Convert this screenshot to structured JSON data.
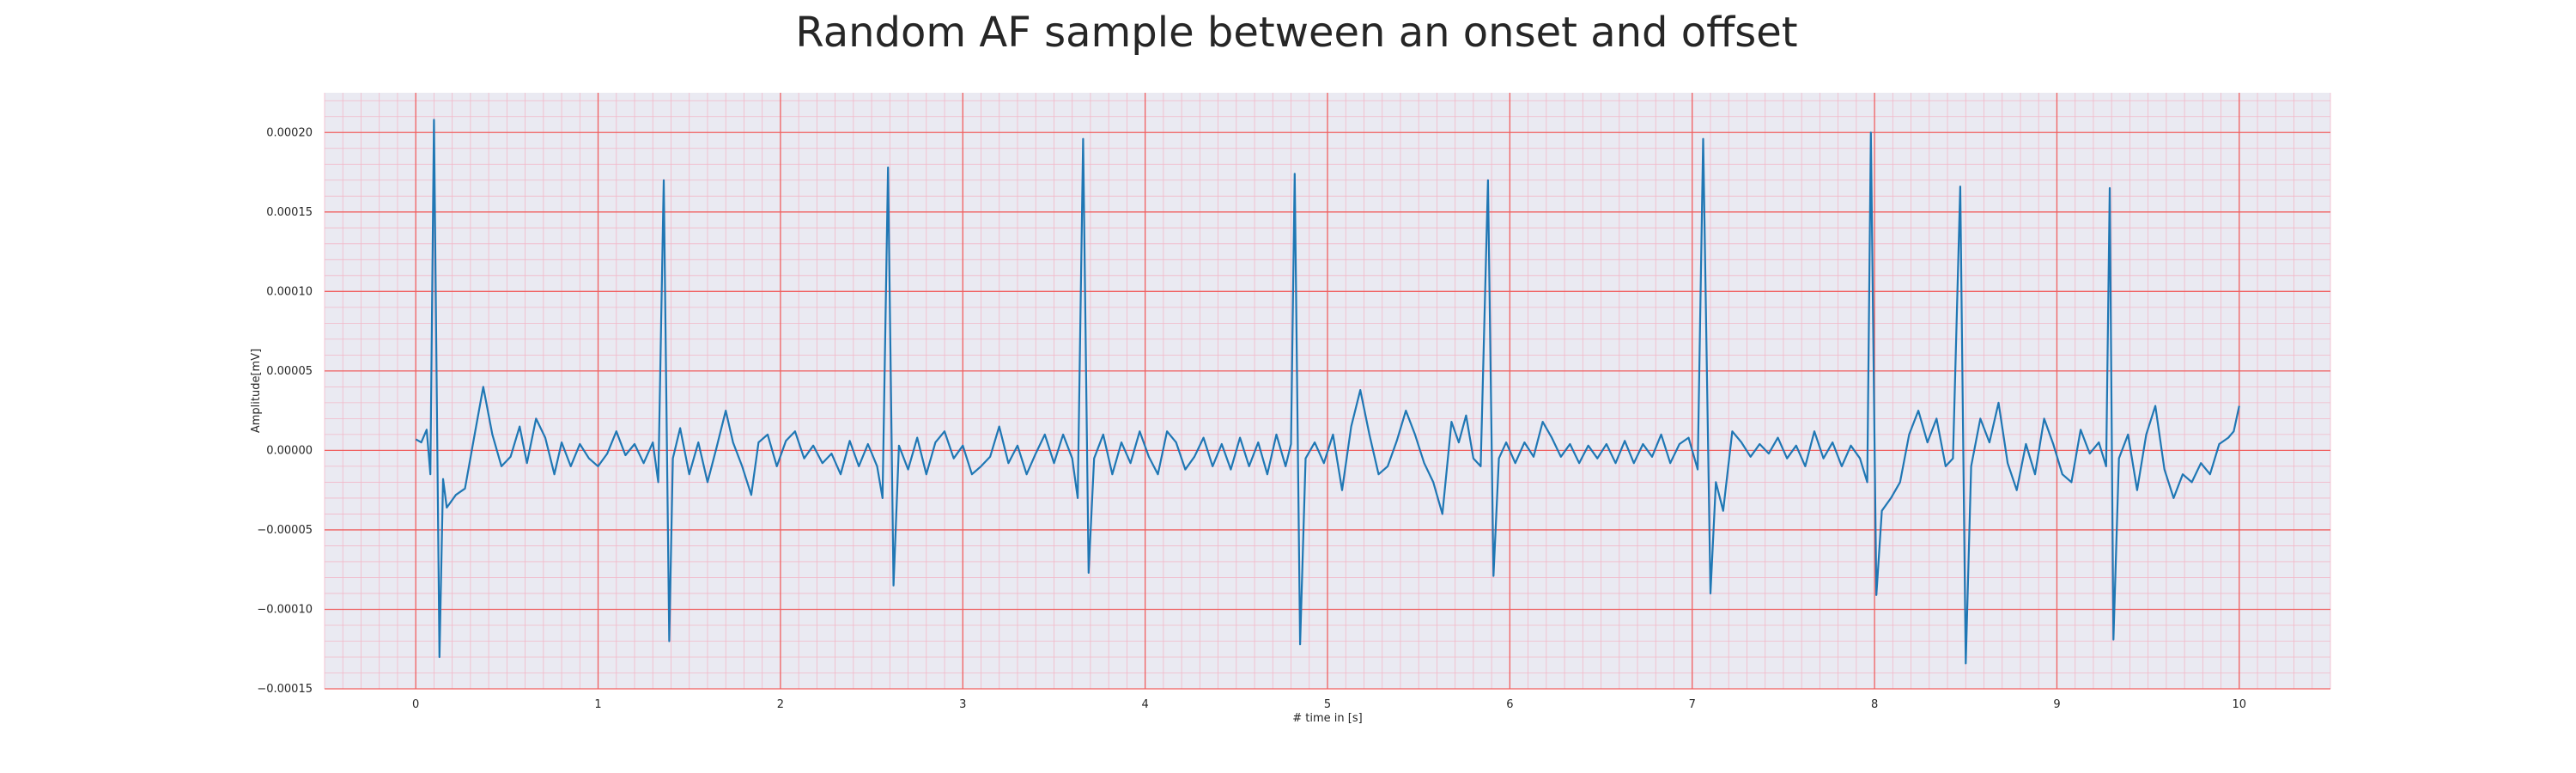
{
  "chart_data": {
    "type": "line",
    "title": "Random AF sample between an onset and offset",
    "xlabel": "# time in [s]",
    "ylabel": "Amplitude[mV]",
    "xlim": [
      -0.5,
      10.5
    ],
    "ylim": [
      -0.00015,
      0.000225
    ],
    "x_ticks": [
      0,
      1,
      2,
      3,
      4,
      5,
      6,
      7,
      8,
      9,
      10
    ],
    "x_tick_labels": [
      "0",
      "1",
      "2",
      "3",
      "4",
      "5",
      "6",
      "7",
      "8",
      "9",
      "10"
    ],
    "y_ticks": [
      -0.00015,
      -0.0001,
      -5e-05,
      0,
      5e-05,
      0.0001,
      0.00015,
      0.0002
    ],
    "y_tick_labels": [
      "−0.00015",
      "−0.00010",
      "−0.00005",
      "0.00000",
      "0.00005",
      "0.00010",
      "0.00015",
      "0.00020"
    ],
    "grid": true,
    "minor_grid": true,
    "colors": {
      "background": "#eaeaf2",
      "major_grid": "#f06060",
      "minor_grid": "#f2b8c8",
      "line": "#1f77b4"
    },
    "series": [
      {
        "values": [
          [
            0.0,
            7e-06
          ],
          [
            0.03,
            5e-06
          ],
          [
            0.06,
            1.3e-05
          ],
          [
            0.08,
            -1.5e-05
          ],
          [
            0.1,
            0.000208
          ],
          [
            0.13,
            -0.00013
          ],
          [
            0.15,
            -1.8e-05
          ],
          [
            0.17,
            -3.6e-05
          ],
          [
            0.22,
            -2.8e-05
          ],
          [
            0.27,
            -2.4e-05
          ],
          [
            0.32,
            8e-06
          ],
          [
            0.37,
            4e-05
          ],
          [
            0.42,
            1e-05
          ],
          [
            0.47,
            -1e-05
          ],
          [
            0.52,
            -4e-06
          ],
          [
            0.57,
            1.5e-05
          ],
          [
            0.61,
            -8e-06
          ],
          [
            0.66,
            2e-05
          ],
          [
            0.71,
            8e-06
          ],
          [
            0.76,
            -1.5e-05
          ],
          [
            0.8,
            5e-06
          ],
          [
            0.85,
            -1e-05
          ],
          [
            0.9,
            4e-06
          ],
          [
            0.95,
            -5e-06
          ],
          [
            1.0,
            -1e-05
          ],
          [
            1.05,
            -2e-06
          ],
          [
            1.1,
            1.2e-05
          ],
          [
            1.15,
            -3e-06
          ],
          [
            1.2,
            4e-06
          ],
          [
            1.25,
            -8e-06
          ],
          [
            1.3,
            5e-06
          ],
          [
            1.33,
            -2e-05
          ],
          [
            1.36,
            0.00017
          ],
          [
            1.39,
            -0.00012
          ],
          [
            1.41,
            -5e-06
          ],
          [
            1.45,
            1.4e-05
          ],
          [
            1.5,
            -1.5e-05
          ],
          [
            1.55,
            5e-06
          ],
          [
            1.6,
            -2e-05
          ],
          [
            1.65,
            2e-06
          ],
          [
            1.7,
            2.5e-05
          ],
          [
            1.74,
            5e-06
          ],
          [
            1.79,
            -1e-05
          ],
          [
            1.84,
            -2.8e-05
          ],
          [
            1.88,
            5e-06
          ],
          [
            1.93,
            1e-05
          ],
          [
            1.98,
            -1e-05
          ],
          [
            2.03,
            6e-06
          ],
          [
            2.08,
            1.2e-05
          ],
          [
            2.13,
            -5e-06
          ],
          [
            2.18,
            3e-06
          ],
          [
            2.23,
            -8e-06
          ],
          [
            2.28,
            -2e-06
          ],
          [
            2.33,
            -1.5e-05
          ],
          [
            2.38,
            6e-06
          ],
          [
            2.43,
            -1e-05
          ],
          [
            2.48,
            4e-06
          ],
          [
            2.53,
            -1e-05
          ],
          [
            2.56,
            -3e-05
          ],
          [
            2.59,
            0.000178
          ],
          [
            2.62,
            -8.5e-05
          ],
          [
            2.65,
            3e-06
          ],
          [
            2.7,
            -1.2e-05
          ],
          [
            2.75,
            8e-06
          ],
          [
            2.8,
            -1.5e-05
          ],
          [
            2.85,
            5e-06
          ],
          [
            2.9,
            1.2e-05
          ],
          [
            2.95,
            -5e-06
          ],
          [
            3.0,
            3e-06
          ],
          [
            3.05,
            -1.5e-05
          ],
          [
            3.1,
            -1e-05
          ],
          [
            3.15,
            -4e-06
          ],
          [
            3.2,
            1.5e-05
          ],
          [
            3.25,
            -8e-06
          ],
          [
            3.3,
            3e-06
          ],
          [
            3.35,
            -1.5e-05
          ],
          [
            3.4,
            -2e-06
          ],
          [
            3.45,
            1e-05
          ],
          [
            3.5,
            -8e-06
          ],
          [
            3.55,
            1e-05
          ],
          [
            3.6,
            -5e-06
          ],
          [
            3.63,
            -3e-05
          ],
          [
            3.66,
            0.000196
          ],
          [
            3.69,
            -7.7e-05
          ],
          [
            3.72,
            -5e-06
          ],
          [
            3.77,
            1e-05
          ],
          [
            3.82,
            -1.5e-05
          ],
          [
            3.87,
            5e-06
          ],
          [
            3.92,
            -8e-06
          ],
          [
            3.97,
            1.2e-05
          ],
          [
            4.02,
            -4e-06
          ],
          [
            4.07,
            -1.5e-05
          ],
          [
            4.12,
            1.2e-05
          ],
          [
            4.17,
            5e-06
          ],
          [
            4.22,
            -1.2e-05
          ],
          [
            4.27,
            -4e-06
          ],
          [
            4.32,
            8e-06
          ],
          [
            4.37,
            -1e-05
          ],
          [
            4.42,
            4e-06
          ],
          [
            4.47,
            -1.2e-05
          ],
          [
            4.52,
            8e-06
          ],
          [
            4.57,
            -1e-05
          ],
          [
            4.62,
            5e-06
          ],
          [
            4.67,
            -1.5e-05
          ],
          [
            4.72,
            1e-05
          ],
          [
            4.77,
            -1e-05
          ],
          [
            4.8,
            4e-06
          ],
          [
            4.82,
            0.000174
          ],
          [
            4.85,
            -0.000122
          ],
          [
            4.88,
            -5e-06
          ],
          [
            4.93,
            5e-06
          ],
          [
            4.98,
            -8e-06
          ],
          [
            5.03,
            1e-05
          ],
          [
            5.08,
            -2.5e-05
          ],
          [
            5.13,
            1.5e-05
          ],
          [
            5.18,
            3.8e-05
          ],
          [
            5.23,
            1e-05
          ],
          [
            5.28,
            -1.5e-05
          ],
          [
            5.33,
            -1e-05
          ],
          [
            5.38,
            6e-06
          ],
          [
            5.43,
            2.5e-05
          ],
          [
            5.48,
            1e-05
          ],
          [
            5.53,
            -8e-06
          ],
          [
            5.58,
            -2e-05
          ],
          [
            5.63,
            -4e-05
          ],
          [
            5.68,
            1.8e-05
          ],
          [
            5.72,
            5e-06
          ],
          [
            5.76,
            2.2e-05
          ],
          [
            5.8,
            -5e-06
          ],
          [
            5.84,
            -1e-05
          ],
          [
            5.88,
            0.00017
          ],
          [
            5.91,
            -7.9e-05
          ],
          [
            5.94,
            -5e-06
          ],
          [
            5.98,
            5e-06
          ],
          [
            6.03,
            -8e-06
          ],
          [
            6.08,
            5e-06
          ],
          [
            6.13,
            -4e-06
          ],
          [
            6.18,
            1.8e-05
          ],
          [
            6.23,
            8e-06
          ],
          [
            6.28,
            -4e-06
          ],
          [
            6.33,
            4e-06
          ],
          [
            6.38,
            -8e-06
          ],
          [
            6.43,
            3e-06
          ],
          [
            6.48,
            -5e-06
          ],
          [
            6.53,
            4e-06
          ],
          [
            6.58,
            -8e-06
          ],
          [
            6.63,
            6e-06
          ],
          [
            6.68,
            -8e-06
          ],
          [
            6.73,
            4e-06
          ],
          [
            6.78,
            -4e-06
          ],
          [
            6.83,
            1e-05
          ],
          [
            6.88,
            -8e-06
          ],
          [
            6.93,
            4e-06
          ],
          [
            6.98,
            8e-06
          ],
          [
            7.03,
            -1.2e-05
          ],
          [
            7.06,
            0.000196
          ],
          [
            7.1,
            -9e-05
          ],
          [
            7.13,
            -2e-05
          ],
          [
            7.17,
            -3.8e-05
          ],
          [
            7.22,
            1.2e-05
          ],
          [
            7.27,
            5e-06
          ],
          [
            7.32,
            -4e-06
          ],
          [
            7.37,
            4e-06
          ],
          [
            7.42,
            -2e-06
          ],
          [
            7.47,
            8e-06
          ],
          [
            7.52,
            -5e-06
          ],
          [
            7.57,
            3e-06
          ],
          [
            7.62,
            -1e-05
          ],
          [
            7.67,
            1.2e-05
          ],
          [
            7.72,
            -5e-06
          ],
          [
            7.77,
            5e-06
          ],
          [
            7.82,
            -1e-05
          ],
          [
            7.87,
            3e-06
          ],
          [
            7.92,
            -5e-06
          ],
          [
            7.96,
            -2e-05
          ],
          [
            7.98,
            0.0002
          ],
          [
            8.01,
            -9.1e-05
          ],
          [
            8.04,
            -3.8e-05
          ],
          [
            8.09,
            -3e-05
          ],
          [
            8.14,
            -2e-05
          ],
          [
            8.19,
            1e-05
          ],
          [
            8.24,
            2.5e-05
          ],
          [
            8.29,
            5e-06
          ],
          [
            8.34,
            2e-05
          ],
          [
            8.39,
            -1e-05
          ],
          [
            8.43,
            -5e-06
          ],
          [
            8.47,
            0.000166
          ],
          [
            8.5,
            -0.000134
          ],
          [
            8.53,
            -1e-05
          ],
          [
            8.58,
            2e-05
          ],
          [
            8.63,
            5e-06
          ],
          [
            8.68,
            3e-05
          ],
          [
            8.73,
            -8e-06
          ],
          [
            8.78,
            -2.5e-05
          ],
          [
            8.83,
            4e-06
          ],
          [
            8.88,
            -1.5e-05
          ],
          [
            8.93,
            2e-05
          ],
          [
            8.98,
            4e-06
          ],
          [
            9.03,
            -1.5e-05
          ],
          [
            9.08,
            -2e-05
          ],
          [
            9.13,
            1.3e-05
          ],
          [
            9.18,
            -2e-06
          ],
          [
            9.23,
            5e-06
          ],
          [
            9.27,
            -1e-05
          ],
          [
            9.29,
            0.000165
          ],
          [
            9.31,
            -0.000119
          ],
          [
            9.34,
            -5e-06
          ],
          [
            9.39,
            1e-05
          ],
          [
            9.44,
            -2.5e-05
          ],
          [
            9.49,
            1e-05
          ],
          [
            9.54,
            2.8e-05
          ],
          [
            9.59,
            -1.2e-05
          ],
          [
            9.64,
            -3e-05
          ],
          [
            9.69,
            -1.5e-05
          ],
          [
            9.74,
            -2e-05
          ],
          [
            9.79,
            -8e-06
          ],
          [
            9.84,
            -1.5e-05
          ],
          [
            9.89,
            4e-06
          ],
          [
            9.94,
            8e-06
          ],
          [
            9.97,
            1.2e-05
          ],
          [
            10.0,
            2.8e-05
          ]
        ]
      }
    ]
  }
}
